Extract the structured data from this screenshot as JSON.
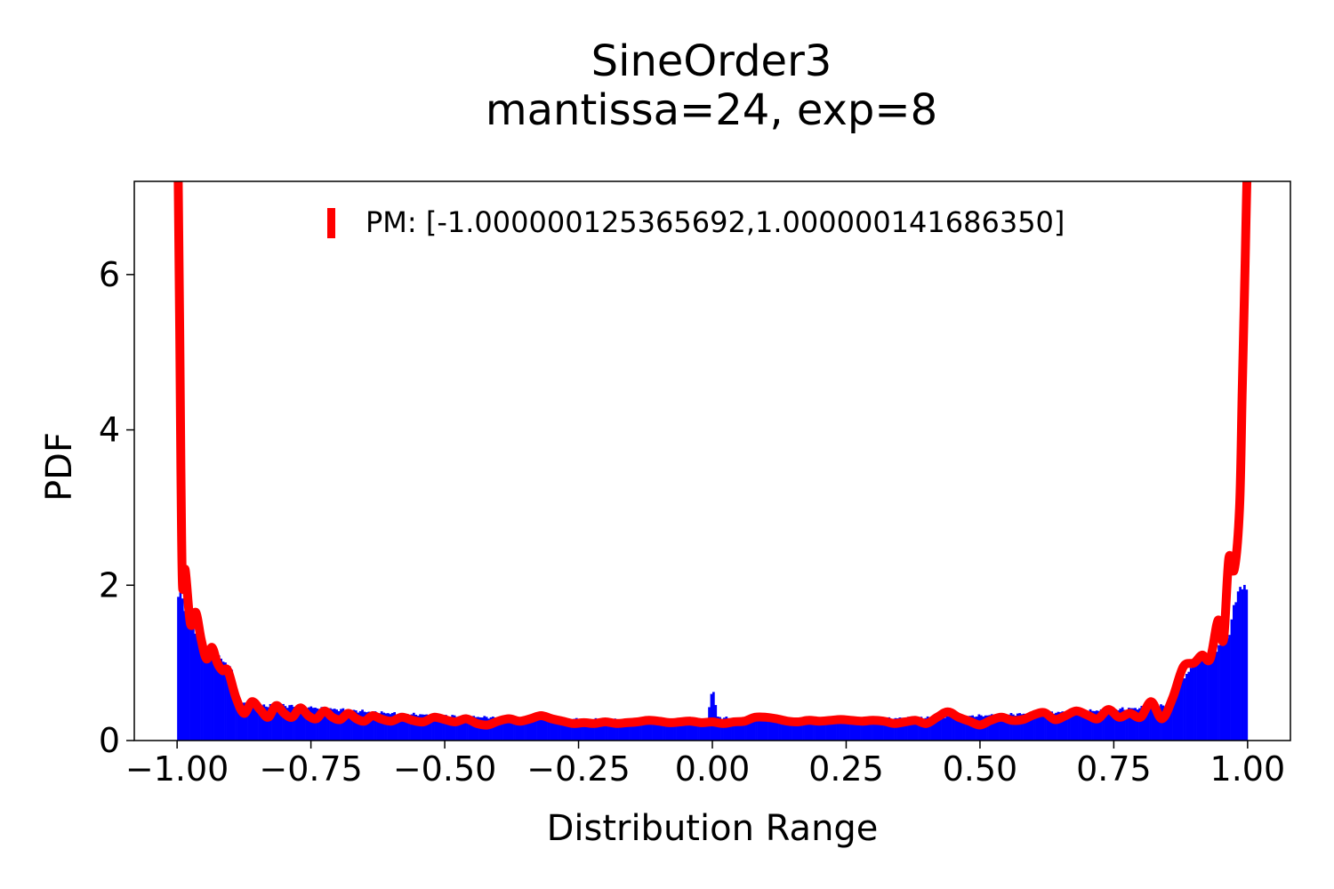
{
  "chart_data": {
    "type": "bar",
    "title_line1": "SineOrder3",
    "title_line2": "mantissa=24, exp=8",
    "xlabel": "Distribution Range",
    "ylabel": "PDF",
    "xlim": [
      -1.08,
      1.08
    ],
    "ylim": [
      0,
      7.2
    ],
    "x_ticks": [
      -1.0,
      -0.75,
      -0.5,
      -0.25,
      0.0,
      0.25,
      0.5,
      0.75,
      1.0
    ],
    "x_tick_labels": [
      "−1.00",
      "−0.75",
      "−0.50",
      "−0.25",
      "0.00",
      "0.25",
      "0.50",
      "0.75",
      "1.00"
    ],
    "y_ticks": [
      0,
      2,
      4,
      6
    ],
    "y_tick_labels": [
      "0",
      "2",
      "4",
      "6"
    ],
    "grid": false,
    "legend_position": "top-center",
    "series": [
      {
        "name": "PM: [-1.000000125365692,1.000000141686350]",
        "kind": "line",
        "color": "#ff0000",
        "x": [
          -1.003,
          -0.998,
          -0.993,
          -0.99,
          -0.985,
          -0.975,
          -0.965,
          -0.955,
          -0.945,
          -0.935,
          -0.925,
          -0.915,
          -0.905,
          -0.89,
          -0.875,
          -0.86,
          -0.845,
          -0.83,
          -0.815,
          -0.8,
          -0.785,
          -0.77,
          -0.755,
          -0.74,
          -0.725,
          -0.71,
          -0.695,
          -0.68,
          -0.665,
          -0.65,
          -0.635,
          -0.62,
          -0.6,
          -0.58,
          -0.56,
          -0.54,
          -0.52,
          -0.5,
          -0.48,
          -0.46,
          -0.44,
          -0.42,
          -0.4,
          -0.38,
          -0.36,
          -0.34,
          -0.32,
          -0.3,
          -0.28,
          -0.26,
          -0.24,
          -0.22,
          -0.2,
          -0.18,
          -0.16,
          -0.14,
          -0.12,
          -0.1,
          -0.08,
          -0.06,
          -0.04,
          -0.02,
          0.0,
          0.02,
          0.04,
          0.06,
          0.08,
          0.1,
          0.12,
          0.14,
          0.16,
          0.18,
          0.2,
          0.22,
          0.24,
          0.26,
          0.28,
          0.3,
          0.32,
          0.34,
          0.36,
          0.38,
          0.4,
          0.42,
          0.44,
          0.46,
          0.48,
          0.5,
          0.52,
          0.54,
          0.56,
          0.58,
          0.6,
          0.62,
          0.64,
          0.66,
          0.68,
          0.7,
          0.72,
          0.74,
          0.76,
          0.78,
          0.8,
          0.82,
          0.84,
          0.86,
          0.88,
          0.9,
          0.915,
          0.93,
          0.945,
          0.955,
          0.965,
          0.975,
          0.985,
          0.99,
          0.995,
          1.0,
          1.005
        ],
        "y": [
          7.5,
          7.2,
          3.5,
          2.0,
          2.2,
          1.5,
          1.65,
          1.3,
          1.05,
          1.2,
          1.0,
          0.9,
          0.9,
          0.55,
          0.35,
          0.5,
          0.4,
          0.3,
          0.45,
          0.35,
          0.3,
          0.42,
          0.32,
          0.28,
          0.38,
          0.3,
          0.27,
          0.35,
          0.28,
          0.25,
          0.32,
          0.28,
          0.25,
          0.3,
          0.26,
          0.24,
          0.3,
          0.27,
          0.24,
          0.28,
          0.22,
          0.2,
          0.25,
          0.28,
          0.25,
          0.28,
          0.32,
          0.28,
          0.25,
          0.22,
          0.23,
          0.22,
          0.24,
          0.22,
          0.23,
          0.24,
          0.26,
          0.25,
          0.23,
          0.24,
          0.25,
          0.23,
          0.24,
          0.22,
          0.24,
          0.25,
          0.3,
          0.3,
          0.28,
          0.25,
          0.24,
          0.26,
          0.25,
          0.26,
          0.27,
          0.26,
          0.25,
          0.26,
          0.25,
          0.22,
          0.24,
          0.26,
          0.22,
          0.3,
          0.37,
          0.3,
          0.25,
          0.2,
          0.26,
          0.3,
          0.26,
          0.27,
          0.33,
          0.36,
          0.27,
          0.32,
          0.38,
          0.33,
          0.28,
          0.4,
          0.3,
          0.35,
          0.3,
          0.5,
          0.28,
          0.55,
          0.95,
          1.0,
          1.1,
          1.05,
          1.55,
          1.3,
          2.35,
          2.2,
          3.0,
          4.5,
          6.0,
          7.5,
          7.6
        ],
        "stroke": "thick"
      },
      {
        "name": "histogram",
        "kind": "histogram",
        "color": "#0000ff",
        "bin_range": [
          -1.0,
          1.0
        ],
        "bin_width": 0.004,
        "density_profile": [
          [
            -1.0,
            1.85
          ],
          [
            -0.99,
            1.85
          ],
          [
            -0.98,
            1.5
          ],
          [
            -0.97,
            1.55
          ],
          [
            -0.96,
            1.3
          ],
          [
            -0.95,
            1.25
          ],
          [
            -0.94,
            1.15
          ],
          [
            -0.93,
            1.1
          ],
          [
            -0.92,
            1.05
          ],
          [
            -0.91,
            1.0
          ],
          [
            -0.9,
            0.95
          ],
          [
            -0.89,
            0.5
          ],
          [
            -0.85,
            0.45
          ],
          [
            -0.8,
            0.45
          ],
          [
            -0.7,
            0.4
          ],
          [
            -0.6,
            0.35
          ],
          [
            -0.5,
            0.32
          ],
          [
            -0.42,
            0.3
          ],
          [
            -0.3,
            0.28
          ],
          [
            -0.2,
            0.27
          ],
          [
            -0.1,
            0.26
          ],
          [
            -0.01,
            0.27
          ],
          [
            0.0,
            0.7
          ],
          [
            0.01,
            0.3
          ],
          [
            0.1,
            0.26
          ],
          [
            0.2,
            0.27
          ],
          [
            0.3,
            0.28
          ],
          [
            0.42,
            0.3
          ],
          [
            0.5,
            0.32
          ],
          [
            0.6,
            0.35
          ],
          [
            0.7,
            0.38
          ],
          [
            0.8,
            0.42
          ],
          [
            0.85,
            0.45
          ],
          [
            0.87,
            0.7
          ],
          [
            0.88,
            0.8
          ],
          [
            0.9,
            1.0
          ],
          [
            0.92,
            1.1
          ],
          [
            0.94,
            1.2
          ],
          [
            0.96,
            1.3
          ],
          [
            0.97,
            1.5
          ],
          [
            0.98,
            1.95
          ],
          [
            1.0,
            1.95
          ]
        ]
      }
    ]
  }
}
